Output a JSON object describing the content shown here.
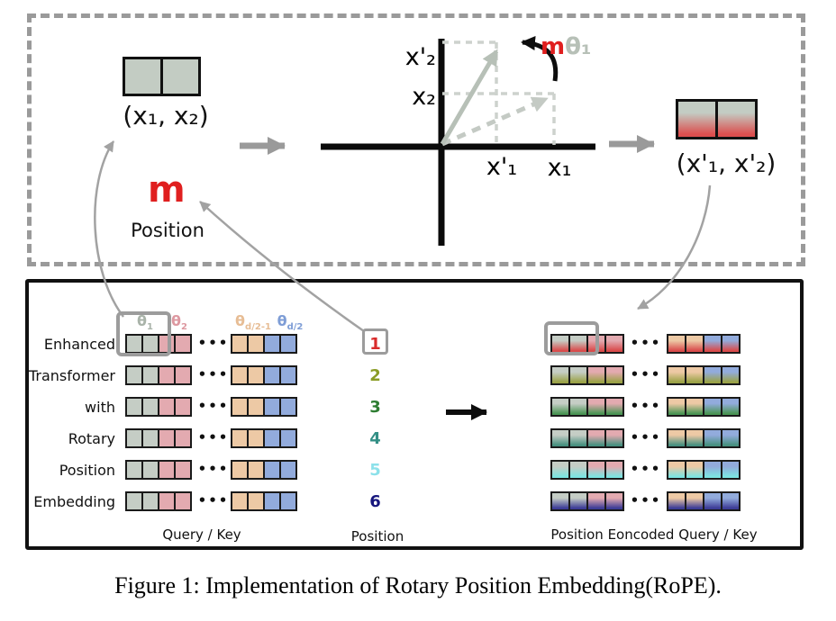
{
  "figure": {
    "caption": "Figure 1: Implementation of Rotary Position Embedding(RoPE)."
  },
  "top_panel": {
    "input_vector_label": "(x₁, x₂)",
    "position_symbol": "m",
    "position_caption": "Position",
    "output_vector_label": "(x'₁, x'₂)",
    "rotation_label": {
      "m": "m",
      "theta": "θ₁"
    },
    "axis_labels": {
      "x2_rotated": "x'₂",
      "x2": "x₂",
      "x1_rotated": "x'₁",
      "x1": "x₁"
    }
  },
  "bottom_panel": {
    "words": [
      "Enhanced",
      "Transformer",
      "with",
      "Rotary",
      "Position",
      "Embedding"
    ],
    "theta_headers": [
      {
        "base": "θ",
        "sub": "1",
        "color": "#a9b3a9"
      },
      {
        "base": "θ",
        "sub": "2",
        "color": "#dd98a0"
      },
      {
        "base": "θ",
        "sub": "d/2-1",
        "color": "#e7bd95"
      },
      {
        "base": "θ",
        "sub": "d/2",
        "color": "#7e9dd6"
      }
    ],
    "positions": [
      {
        "value": "1",
        "color": "#d92b2b"
      },
      {
        "value": "2",
        "color": "#8a9c25"
      },
      {
        "value": "3",
        "color": "#2e7d32"
      },
      {
        "value": "4",
        "color": "#338f85"
      },
      {
        "value": "5",
        "color": "#8ce1ea"
      },
      {
        "value": "6",
        "color": "#16167d"
      }
    ],
    "cell_base_colors": {
      "gray": "#c5cdc5",
      "pink": "#e3aab0",
      "tan": "#edc9a5",
      "blue": "#92abdc"
    },
    "row_pattern": [
      "gray",
      "gray",
      "pink",
      "pink",
      "tan",
      "tan",
      "blue",
      "blue"
    ],
    "position_gradient_colors": [
      "#d94b4b",
      "#9aa246",
      "#4a9554",
      "#47907f",
      "#7de4e1",
      "#3c3c96"
    ],
    "ellipsis": "•••",
    "left_group_caption": "Query / Key",
    "position_column_caption": "Position",
    "right_group_caption": "Position Eoncoded Query / Key"
  },
  "colors": {
    "m_red": "#e01f1f",
    "pale_vector": "#b7c0b7",
    "arrow_gray": "#9a9a9a",
    "thin_arrow_gray": "#a2a2a2",
    "highlight_box": "#9c9c9c"
  }
}
